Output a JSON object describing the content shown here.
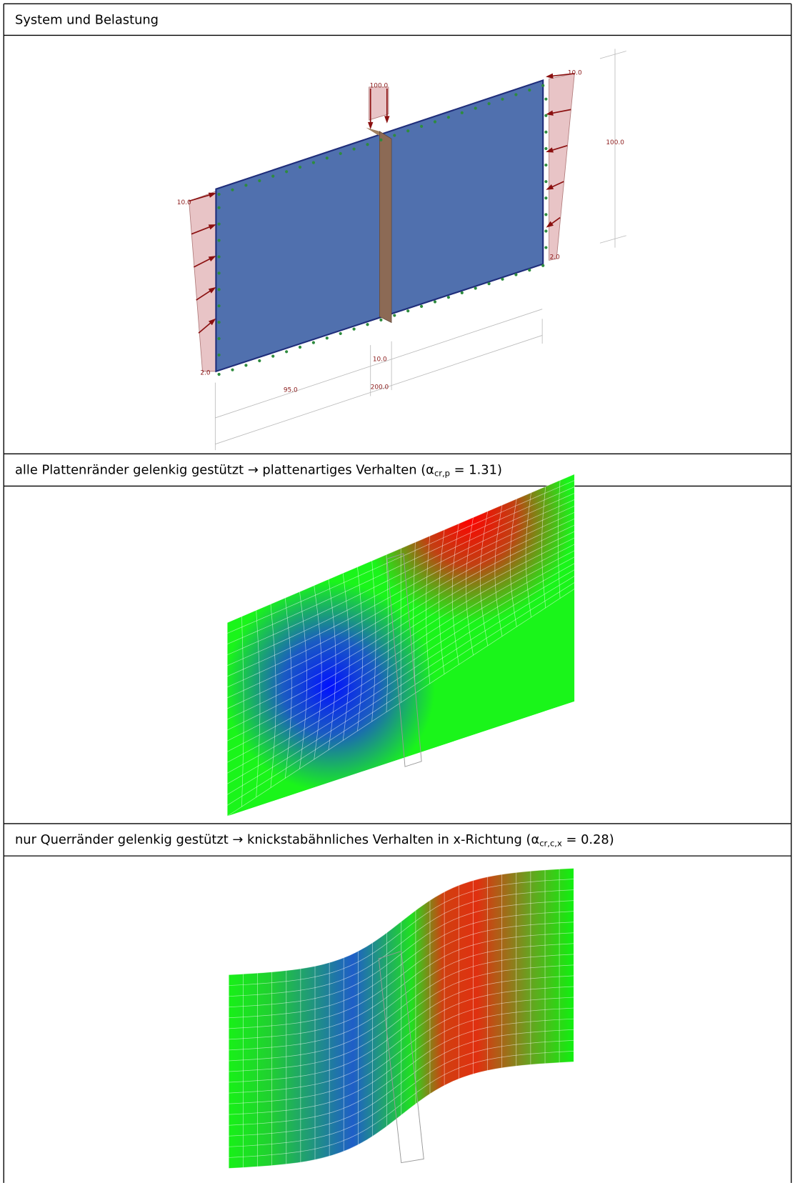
{
  "sections": [
    {
      "caption": {
        "text": "System und Belastung"
      },
      "figure": {
        "labels": {
          "load_top": "100.0",
          "load_right_top": "10.0",
          "load_right_bottom": "2.0",
          "load_left_top": "10.0",
          "load_left_bottom": "2.0",
          "height": "100.0",
          "stiffener_width": "10.0",
          "panel_width": "95.0",
          "total_width": "200.0"
        }
      }
    },
    {
      "caption": {
        "text": "alle Plattenränder gelenkig gestützt → plattenartiges Verhalten (",
        "symbol": "α",
        "subscript": "cr,p",
        "after": " = 1.31)"
      }
    },
    {
      "caption": {
        "text": "nur Querränder gelenkig gestützt → knickstabähnliches Verhalten in x-Richtung (",
        "symbol": "α",
        "subscript": "cr,c,x",
        "after": " = 0.28)"
      }
    }
  ]
}
